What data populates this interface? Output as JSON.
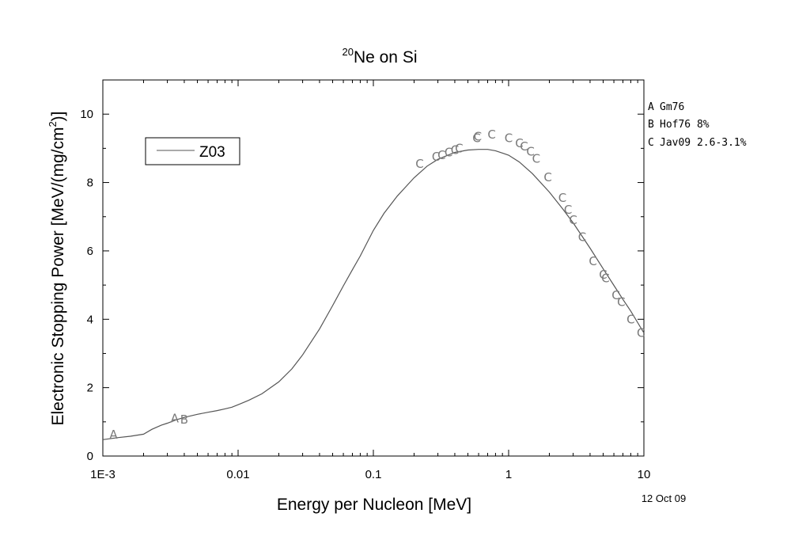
{
  "chart_data": {
    "type": "line",
    "title": {
      "sup": "20",
      "text": "Ne on Si"
    },
    "xlabel": "Energy per Nucleon [MeV]",
    "ylabel": {
      "pre": "Electronic Stopping Power [MeV/(mg/cm",
      "sup": "2",
      "post": ")]"
    },
    "x_scale": "log",
    "xlim": [
      0.001,
      10
    ],
    "ylim": [
      0,
      11
    ],
    "x_ticks": [
      {
        "value": 0.001,
        "label": "1E-3"
      },
      {
        "value": 0.01,
        "label": "0.01"
      },
      {
        "value": 0.1,
        "label": "0.1"
      },
      {
        "value": 1,
        "label": "1"
      },
      {
        "value": 10,
        "label": "10"
      }
    ],
    "y_ticks": [
      {
        "value": 0,
        "label": "0"
      },
      {
        "value": 2,
        "label": "2"
      },
      {
        "value": 4,
        "label": "4"
      },
      {
        "value": 6,
        "label": "6"
      },
      {
        "value": 8,
        "label": "8"
      },
      {
        "value": 10,
        "label": "10"
      }
    ],
    "grid": false,
    "legend_position": "top-left",
    "series": [
      {
        "name": "Z03",
        "style": "line",
        "color": "#555555",
        "x": [
          0.001,
          0.0013,
          0.0016,
          0.002,
          0.0023,
          0.0027,
          0.003,
          0.0035,
          0.004,
          0.005,
          0.006,
          0.007,
          0.008,
          0.009,
          0.01,
          0.012,
          0.015,
          0.02,
          0.025,
          0.03,
          0.04,
          0.05,
          0.06,
          0.07,
          0.08,
          0.1,
          0.12,
          0.15,
          0.2,
          0.25,
          0.3,
          0.4,
          0.5,
          0.6,
          0.7,
          0.8,
          1.0,
          1.2,
          1.5,
          2.0,
          2.5,
          3.0,
          4.0,
          5.0,
          6.0,
          7.0,
          8.0,
          10.0
        ],
        "y": [
          0.48,
          0.54,
          0.58,
          0.64,
          0.78,
          0.9,
          0.96,
          1.06,
          1.13,
          1.22,
          1.28,
          1.33,
          1.38,
          1.43,
          1.5,
          1.63,
          1.82,
          2.17,
          2.55,
          2.96,
          3.72,
          4.4,
          4.98,
          5.45,
          5.85,
          6.6,
          7.1,
          7.6,
          8.14,
          8.48,
          8.68,
          8.88,
          8.95,
          8.97,
          8.97,
          8.93,
          8.8,
          8.6,
          8.26,
          7.72,
          7.24,
          6.82,
          6.08,
          5.48,
          4.99,
          4.58,
          4.24,
          3.6
        ]
      },
      {
        "name": "Gm76",
        "marker": "A",
        "style": "letter",
        "color": "#7a7a7a",
        "x": [
          0.0012,
          0.0034
        ],
        "y": [
          0.62,
          1.1
        ]
      },
      {
        "name": "Hof76 8%",
        "marker": "B",
        "style": "letter",
        "color": "#7a7a7a",
        "x": [
          0.004
        ],
        "y": [
          1.06
        ]
      },
      {
        "name": "Jav09 2.6-3.1%",
        "marker": "C",
        "style": "letter",
        "color": "#7a7a7a",
        "x": [
          0.22,
          0.29,
          0.32,
          0.36,
          0.4,
          0.43,
          0.58,
          0.59,
          0.75,
          1.0,
          1.2,
          1.3,
          1.45,
          1.6,
          1.95,
          2.5,
          2.75,
          3.0,
          3.5,
          4.2,
          5.0,
          5.2,
          6.2,
          6.8,
          8.0,
          9.5
        ],
        "y": [
          8.55,
          8.75,
          8.8,
          8.88,
          8.95,
          9.0,
          9.3,
          9.35,
          9.4,
          9.3,
          9.15,
          9.05,
          8.9,
          8.7,
          8.15,
          7.55,
          7.2,
          6.9,
          6.4,
          5.7,
          5.3,
          5.2,
          4.7,
          4.5,
          4.0,
          3.6
        ]
      }
    ],
    "legend": {
      "label": "Z03"
    },
    "ref_legend": [
      {
        "letter": "A",
        "text": "Gm76"
      },
      {
        "letter": "B",
        "text": "Hof76 8%"
      },
      {
        "letter": "C",
        "text": "Jav09 2.6-3.1%"
      }
    ]
  },
  "footer": {
    "date": "12 Oct 09"
  }
}
